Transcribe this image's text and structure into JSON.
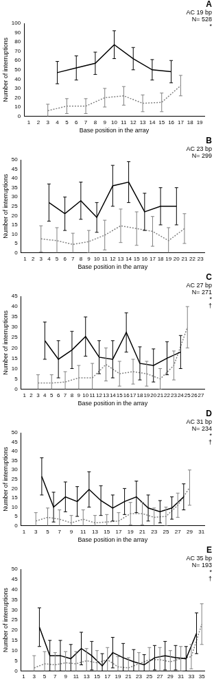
{
  "chart_data": [
    {
      "type": "line",
      "title": "A",
      "annotations": [
        "AC 19 bp",
        "N= 528",
        "*"
      ],
      "x_label": "Base position in the array",
      "y_label": "Number of interruptions",
      "categories": [
        1,
        2,
        3,
        4,
        5,
        6,
        7,
        8,
        9,
        10,
        11,
        12,
        13,
        14,
        15,
        16,
        17,
        18,
        19
      ],
      "ylim": [
        0,
        100
      ],
      "yticks": [
        0,
        10,
        20,
        30,
        40,
        50,
        60,
        70,
        80,
        90,
        100
      ],
      "grid": false,
      "series": [
        {
          "color": "#000000",
          "line_style": "solid",
          "values": [
            null,
            null,
            null,
            47,
            null,
            52,
            null,
            57,
            null,
            77,
            null,
            62,
            null,
            50,
            null,
            48,
            null,
            null,
            null
          ],
          "errors": [
            null,
            null,
            null,
            12,
            null,
            13,
            null,
            12,
            null,
            15,
            null,
            12,
            null,
            11,
            null,
            12,
            null,
            null,
            null
          ]
        },
        {
          "color": "#808080",
          "line_style": "dotted",
          "values": [
            null,
            null,
            6,
            null,
            11,
            null,
            11,
            null,
            20,
            null,
            22,
            null,
            14,
            null,
            15,
            null,
            33,
            null,
            null
          ],
          "errors": [
            null,
            null,
            7,
            null,
            8,
            null,
            8,
            null,
            10,
            null,
            10,
            null,
            9,
            null,
            10,
            null,
            11,
            null,
            null
          ]
        }
      ]
    },
    {
      "type": "line",
      "title": "B",
      "annotations": [
        "AC 23 bp",
        "N= 299"
      ],
      "x_label": "Base position in the array",
      "y_label": "Number of interruptions",
      "categories": [
        1,
        2,
        3,
        4,
        5,
        6,
        7,
        8,
        9,
        10,
        11,
        12,
        13,
        14,
        15,
        16,
        17,
        18,
        19,
        20,
        21,
        22,
        23
      ],
      "ylim": [
        0,
        50
      ],
      "yticks": [
        0,
        5,
        10,
        15,
        20,
        25,
        30,
        35,
        40,
        45,
        50
      ],
      "grid": false,
      "series": [
        {
          "color": "#000000",
          "line_style": "solid",
          "values": [
            null,
            null,
            null,
            27,
            null,
            21,
            null,
            28,
            null,
            19,
            null,
            36,
            null,
            38,
            null,
            22,
            null,
            25,
            null,
            25,
            null,
            null,
            null
          ],
          "errors": [
            null,
            null,
            null,
            10,
            null,
            9,
            null,
            10,
            null,
            8,
            null,
            11,
            null,
            11,
            null,
            10,
            null,
            10,
            null,
            10,
            null,
            null,
            null
          ]
        },
        {
          "color": "#808080",
          "line_style": "dotted",
          "values": [
            null,
            null,
            7.5,
            null,
            6.5,
            null,
            4.5,
            null,
            6,
            null,
            9.5,
            null,
            14.5,
            null,
            13,
            null,
            11.5,
            null,
            6.5,
            null,
            13,
            null,
            null
          ],
          "errors": [
            null,
            null,
            7,
            null,
            7,
            null,
            6,
            null,
            6,
            null,
            8,
            null,
            9,
            null,
            9,
            null,
            8,
            null,
            7,
            null,
            8,
            null,
            null
          ]
        }
      ]
    },
    {
      "type": "line",
      "title": "C",
      "annotations": [
        "AC 27 bp",
        "N= 271",
        "*",
        "†"
      ],
      "x_label": "Base position in the array",
      "y_label": "Number of interruptions",
      "categories": [
        1,
        2,
        3,
        4,
        5,
        6,
        7,
        8,
        9,
        10,
        11,
        12,
        13,
        14,
        15,
        16,
        17,
        18,
        19,
        20,
        21,
        22,
        23,
        24,
        25,
        26,
        27
      ],
      "ylim": [
        0,
        45
      ],
      "yticks": [
        0,
        5,
        10,
        15,
        20,
        25,
        30,
        35,
        40,
        45
      ],
      "grid": false,
      "series": [
        {
          "color": "#000000",
          "line_style": "solid",
          "values": [
            null,
            null,
            null,
            23.5,
            null,
            14.5,
            null,
            19,
            null,
            25.5,
            null,
            15.5,
            null,
            14.5,
            null,
            27.5,
            null,
            12.5,
            null,
            11.5,
            null,
            15,
            null,
            18,
            null,
            null,
            null
          ],
          "errors": [
            null,
            null,
            null,
            9,
            null,
            9,
            null,
            9,
            null,
            9.5,
            null,
            8,
            null,
            9,
            null,
            9.5,
            null,
            8,
            null,
            8,
            null,
            8,
            null,
            8,
            null,
            null,
            null
          ]
        },
        {
          "color": "#808080",
          "line_style": "dotted",
          "values": [
            null,
            null,
            3,
            null,
            3,
            null,
            3.5,
            null,
            5.5,
            null,
            5.5,
            null,
            12,
            null,
            7.5,
            null,
            8.5,
            null,
            7.5,
            null,
            5,
            null,
            11.5,
            null,
            30,
            null,
            null
          ],
          "errors": [
            null,
            null,
            4,
            null,
            4,
            null,
            5,
            null,
            6,
            null,
            7,
            null,
            8,
            null,
            6,
            null,
            6,
            null,
            6,
            null,
            5,
            null,
            7,
            null,
            10,
            null,
            null
          ]
        }
      ]
    },
    {
      "type": "line",
      "title": "D",
      "annotations": [
        "AC 31 bp",
        "N= 234",
        "*",
        "†"
      ],
      "x_label": "Base position in the array",
      "y_label": "Number of interruptions",
      "categories": [
        1,
        null,
        3,
        null,
        5,
        null,
        7,
        null,
        9,
        null,
        11,
        null,
        13,
        null,
        15,
        null,
        17,
        null,
        19,
        null,
        21,
        null,
        23,
        null,
        25,
        null,
        27,
        null,
        29,
        null,
        31
      ],
      "ylim": [
        0,
        50
      ],
      "yticks": [
        0,
        5,
        10,
        15,
        20,
        25,
        30,
        35,
        40,
        45,
        50
      ],
      "grid": false,
      "series": [
        {
          "color": "#000000",
          "line_style": "solid",
          "values": [
            null,
            null,
            null,
            26.5,
            null,
            10,
            null,
            15.5,
            null,
            13,
            null,
            19.5,
            null,
            13.5,
            null,
            9.5,
            null,
            13,
            null,
            15.5,
            null,
            9.5,
            null,
            7.5,
            null,
            9.5,
            null,
            15.5,
            null,
            null,
            null
          ],
          "errors": [
            null,
            null,
            null,
            10,
            null,
            8,
            null,
            8,
            null,
            8,
            null,
            9.5,
            null,
            8,
            null,
            7,
            null,
            7,
            null,
            8.5,
            null,
            7,
            null,
            6,
            null,
            6,
            null,
            7,
            null,
            null,
            null
          ]
        },
        {
          "color": "#808080",
          "line_style": "dotted",
          "values": [
            null,
            null,
            2.5,
            null,
            4.5,
            null,
            3.5,
            null,
            1.5,
            null,
            3.5,
            null,
            1.5,
            null,
            2,
            null,
            2.5,
            null,
            6.5,
            null,
            6.5,
            null,
            4.5,
            null,
            5,
            null,
            11,
            null,
            20.5,
            null,
            null
          ],
          "errors": [
            null,
            null,
            4.5,
            null,
            5,
            null,
            5,
            null,
            4,
            null,
            5,
            null,
            4,
            null,
            4,
            null,
            4.5,
            null,
            6,
            null,
            6,
            null,
            5,
            null,
            5,
            null,
            6.5,
            null,
            9.5,
            null,
            null
          ]
        }
      ]
    },
    {
      "type": "line",
      "title": "E",
      "annotations": [
        "AC 35 bp",
        "N= 193",
        "*",
        "†"
      ],
      "y_label": "Number of interruptions",
      "categories": [
        1,
        null,
        3,
        null,
        5,
        null,
        7,
        null,
        9,
        null,
        11,
        null,
        13,
        null,
        15,
        null,
        17,
        null,
        19,
        null,
        21,
        null,
        23,
        null,
        25,
        null,
        27,
        null,
        29,
        null,
        31,
        null,
        33,
        null,
        35
      ],
      "ylim": [
        0,
        50
      ],
      "yticks": [
        0,
        5,
        10,
        15,
        20,
        25,
        30,
        35,
        40,
        45,
        50
      ],
      "grid": false,
      "series": [
        {
          "color": "#000000",
          "line_style": "solid",
          "values": [
            null,
            null,
            null,
            21.5,
            null,
            7.5,
            null,
            7.5,
            null,
            6,
            null,
            11,
            null,
            7.5,
            null,
            2.5,
            null,
            9,
            null,
            6.5,
            null,
            4.5,
            null,
            3,
            null,
            6.5,
            null,
            7.5,
            null,
            6.5,
            null,
            6,
            null,
            18.5,
            null
          ],
          "errors": [
            null,
            null,
            null,
            9.5,
            null,
            7.5,
            null,
            7.5,
            null,
            7,
            null,
            8,
            null,
            7,
            null,
            6,
            null,
            7.5,
            null,
            7,
            null,
            6,
            null,
            5,
            null,
            6,
            null,
            7,
            null,
            6,
            null,
            6,
            null,
            10,
            null
          ]
        },
        {
          "color": "#808080",
          "line_style": "dotted",
          "values": [
            null,
            null,
            1.5,
            null,
            3.5,
            null,
            3,
            null,
            4,
            null,
            3.5,
            null,
            5,
            null,
            4,
            null,
            5.5,
            null,
            2,
            null,
            1.5,
            null,
            3.5,
            null,
            5.5,
            null,
            5.5,
            null,
            4.5,
            null,
            6,
            null,
            7,
            null,
            23
          ],
          "errors": [
            null,
            null,
            6,
            null,
            6,
            null,
            6,
            null,
            5.5,
            null,
            6,
            null,
            6,
            null,
            6,
            null,
            6,
            null,
            5,
            null,
            5,
            null,
            5.5,
            null,
            6,
            null,
            6,
            null,
            5.5,
            null,
            6,
            null,
            6,
            null,
            10
          ]
        }
      ]
    }
  ]
}
